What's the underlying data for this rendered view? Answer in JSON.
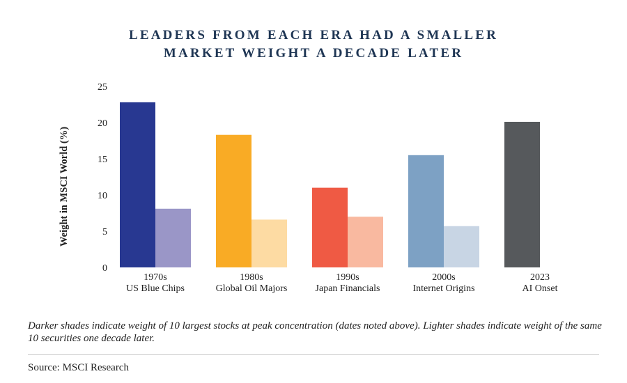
{
  "chart_data": {
    "type": "bar",
    "title_lines": [
      "LEADERS FROM EACH ERA HAD A SMALLER",
      "MARKET WEIGHT A DECADE LATER"
    ],
    "ylabel": "Weight in MSCI World (%)",
    "xlabel": "",
    "ylim": [
      0,
      25
    ],
    "yticks": [
      0,
      5,
      10,
      15,
      20,
      25
    ],
    "grid": false,
    "categories": [
      {
        "decade": "1970s",
        "name": "US Blue Chips"
      },
      {
        "decade": "1980s",
        "name": "Global Oil Majors"
      },
      {
        "decade": "1990s",
        "name": "Japan Financials"
      },
      {
        "decade": "2000s",
        "name": "Internet Origins"
      },
      {
        "decade": "2023",
        "name": "AI Onset"
      }
    ],
    "series": [
      {
        "values": [
          22.8,
          18.3,
          11.0,
          15.5,
          20.1
        ],
        "colors": [
          "#283891",
          "#f9ab25",
          "#ef5a44",
          "#7da1c4",
          "#56595c"
        ]
      },
      {
        "values": [
          8.1,
          6.6,
          7.0,
          5.7,
          null
        ],
        "colors": [
          "#9a96c7",
          "#fddba3",
          "#f9b9a0",
          "#c8d5e4",
          null
        ]
      }
    ]
  },
  "caption": "Darker shades indicate weight of 10 largest stocks at peak concentration (dates noted above). Lighter shades indicate weight of the same 10 securities one decade later.",
  "source": "Source: MSCI Research"
}
